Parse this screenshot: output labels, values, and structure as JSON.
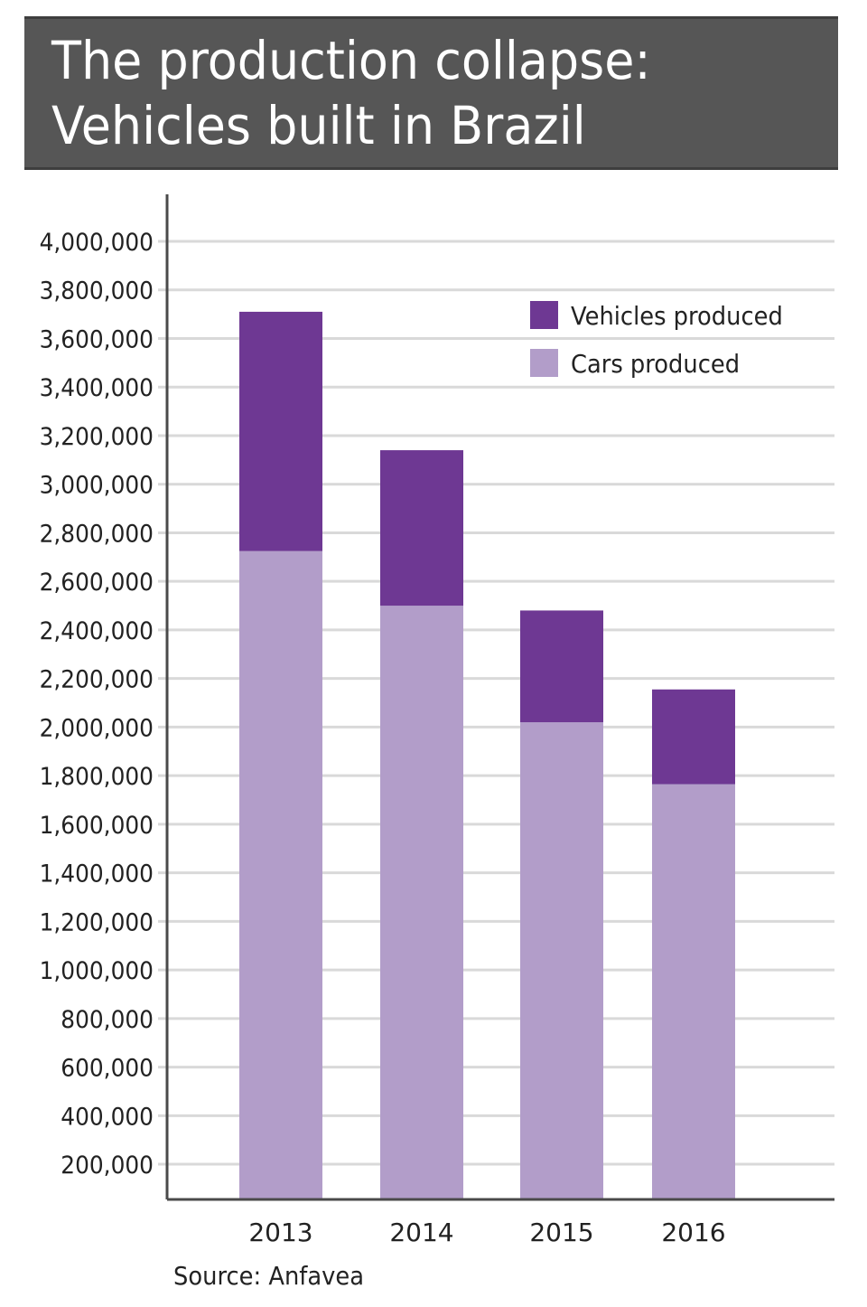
{
  "title": {
    "line1": "The production collapse:",
    "line2": "Vehicles built in Brazil"
  },
  "source": "Source: Anfavea",
  "chart_data": {
    "type": "bar",
    "stacked": false,
    "overlapping": true,
    "title": "The production collapse: Vehicles built in Brazil",
    "xlabel": "",
    "ylabel": "",
    "categories": [
      "2013",
      "2014",
      "2015",
      "2016"
    ],
    "series": [
      {
        "name": "Vehicles produced",
        "color": "#6e3893",
        "values": [
          3710000,
          3140000,
          2480000,
          2155000
        ]
      },
      {
        "name": "Cars produced",
        "color": "#b29dc9",
        "values": [
          2725000,
          2500000,
          2020000,
          1765000
        ]
      }
    ],
    "ylim": [
      50000,
      4000000
    ],
    "yticks": [
      200000,
      400000,
      600000,
      800000,
      1000000,
      1200000,
      1400000,
      1600000,
      1800000,
      2000000,
      2200000,
      2400000,
      2600000,
      2800000,
      3000000,
      3200000,
      3400000,
      3600000,
      3800000,
      4000000
    ],
    "ytick_labels": [
      "200,000",
      "400,000",
      "600,000",
      "800,000",
      "1,000,000",
      "1,200,000",
      "1,400,000",
      "1,600,000",
      "1,800,000",
      "2,000,000",
      "2,200,000",
      "2,400,000",
      "2,600,000",
      "2,800,000",
      "3,000,000",
      "3,200,000",
      "3,400,000",
      "3,600,000",
      "3,800,000",
      "4,000,000"
    ],
    "grid": true,
    "legend": {
      "position": "top-right",
      "entries": [
        "Vehicles produced",
        "Cars produced"
      ]
    },
    "colors": {
      "gridline": "#d9d9d9",
      "axis": "#4a4a4a"
    },
    "source": "Anfavea"
  }
}
